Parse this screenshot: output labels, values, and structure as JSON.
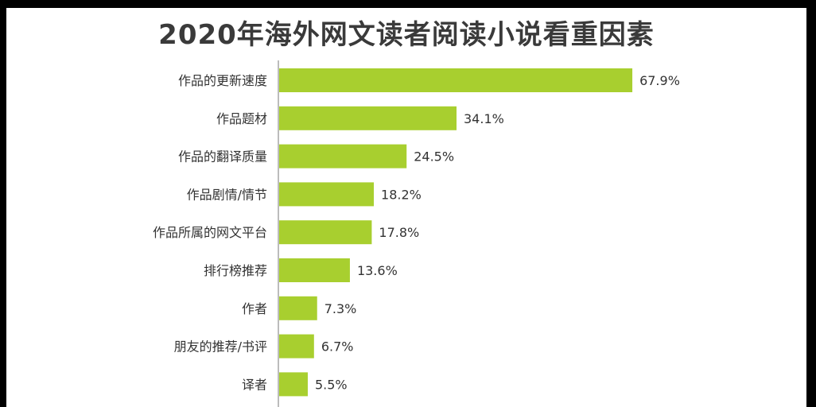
{
  "chart_data": {
    "type": "bar",
    "orientation": "horizontal",
    "title": "2020年海外网文读者阅读小说看重因素",
    "categories": [
      "作品的更新速度",
      "作品题材",
      "作品的翻译质量",
      "作品剧情/情节",
      "作品所属的网文平台",
      "排行榜推荐",
      "作者",
      "朋友的推荐/书评",
      "译者"
    ],
    "values": [
      67.9,
      34.1,
      24.5,
      18.2,
      17.8,
      13.6,
      7.3,
      6.7,
      5.5
    ],
    "value_labels": [
      "67.9%",
      "34.1%",
      "24.5%",
      "18.2%",
      "17.8%",
      "13.6%",
      "7.3%",
      "6.7%",
      "5.5%"
    ],
    "xlim": [
      0,
      70
    ],
    "grid": false,
    "bar_color": "#a8cf2f"
  }
}
